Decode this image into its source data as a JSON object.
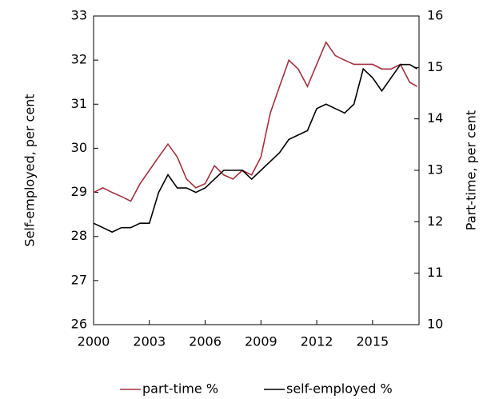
{
  "chart_data": {
    "type": "line",
    "y_label": "Self-employed, per cent",
    "y2_label": "Part-time, per cent",
    "x": [
      2000,
      2000.5,
      2001,
      2001.5,
      2002,
      2002.5,
      2003,
      2003.5,
      2004,
      2004.5,
      2005,
      2005.5,
      2006,
      2006.5,
      2007,
      2007.5,
      2008,
      2008.5,
      2009,
      2009.5,
      2010,
      2010.5,
      2011,
      2011.5,
      2012,
      2012.5,
      2013,
      2013.5,
      2014,
      2014.5,
      2015,
      2015.5,
      2016,
      2016.5,
      2017,
      2017.4
    ],
    "series": [
      {
        "name": "part-time %",
        "color": "#a3303f",
        "axis": "y2",
        "values": [
          12.57,
          12.66,
          12.57,
          12.49,
          12.4,
          12.74,
          13.0,
          13.26,
          13.51,
          13.26,
          12.83,
          12.66,
          12.74,
          13.09,
          12.91,
          12.83,
          13.0,
          12.91,
          13.26,
          14.11,
          14.63,
          15.14,
          14.97,
          14.63,
          15.06,
          15.49,
          15.23,
          15.14,
          15.06,
          15.06,
          15.06,
          14.97,
          14.97,
          15.06,
          14.71,
          14.63
        ]
      },
      {
        "name": "self-employed %",
        "color": "#000000",
        "values": [
          28.3,
          28.2,
          28.1,
          28.2,
          28.2,
          28.3,
          28.3,
          29.0,
          29.4,
          29.1,
          29.1,
          29.0,
          29.1,
          29.3,
          29.5,
          29.5,
          29.5,
          29.3,
          29.5,
          29.7,
          29.9,
          30.2,
          30.3,
          30.4,
          30.9,
          31.0,
          30.9,
          30.8,
          31.0,
          31.8,
          31.6,
          31.3,
          31.6,
          31.9,
          31.9,
          31.8
        ]
      }
    ],
    "xlim": [
      2000,
      2017.5
    ],
    "xticks": [
      2000,
      2003,
      2006,
      2009,
      2012,
      2015
    ],
    "ylim": [
      26,
      33
    ],
    "yticks": [
      26,
      27,
      28,
      29,
      30,
      31,
      32,
      33
    ],
    "y2lim": [
      10,
      16
    ],
    "y2ticks": [
      10,
      11,
      12,
      13,
      14,
      15,
      16
    ],
    "legend": "bottom"
  }
}
